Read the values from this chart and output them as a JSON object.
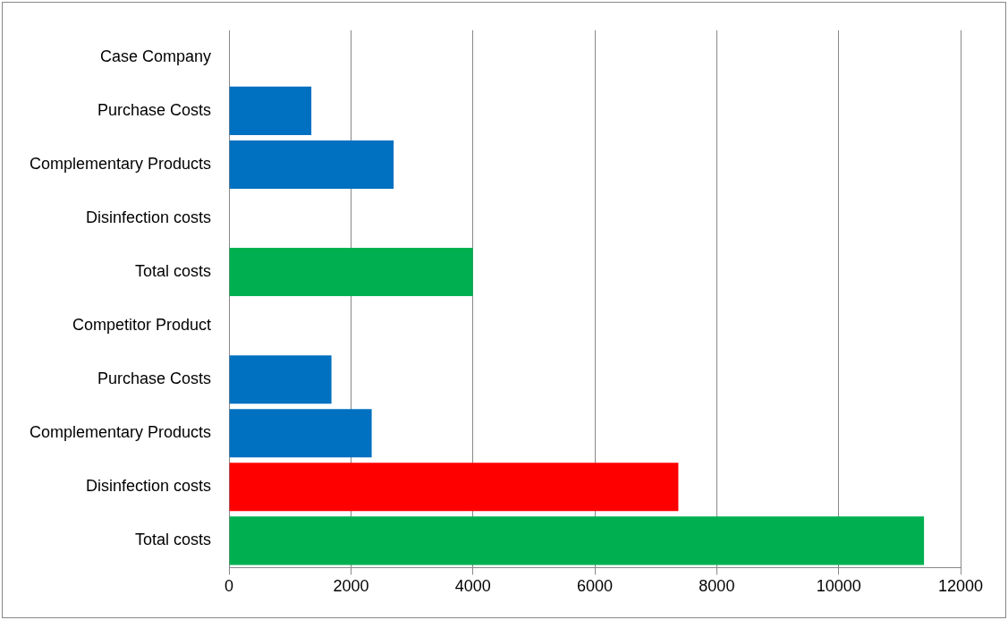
{
  "chart_data": {
    "type": "bar",
    "orientation": "horizontal",
    "categories": [
      "Case Company",
      "Purchase Costs",
      "Complementary Products",
      "Disinfection costs",
      "Total costs",
      "Competitor Product",
      "Purchase Costs",
      "Complementary Products",
      "Disinfection costs",
      "Total costs"
    ],
    "values": [
      null,
      1350,
      2700,
      null,
      4000,
      null,
      1680,
      2340,
      7370,
      11400
    ],
    "colors": [
      "#0070c0",
      "#0070c0",
      "#0070c0",
      "#ff0000",
      "#00b050",
      "#0070c0",
      "#0070c0",
      "#0070c0",
      "#ff0000",
      "#00b050"
    ],
    "xlim": [
      0,
      12000
    ],
    "xticks": [
      0,
      2000,
      4000,
      6000,
      8000,
      10000,
      12000
    ],
    "grid": "x",
    "legend": false
  }
}
